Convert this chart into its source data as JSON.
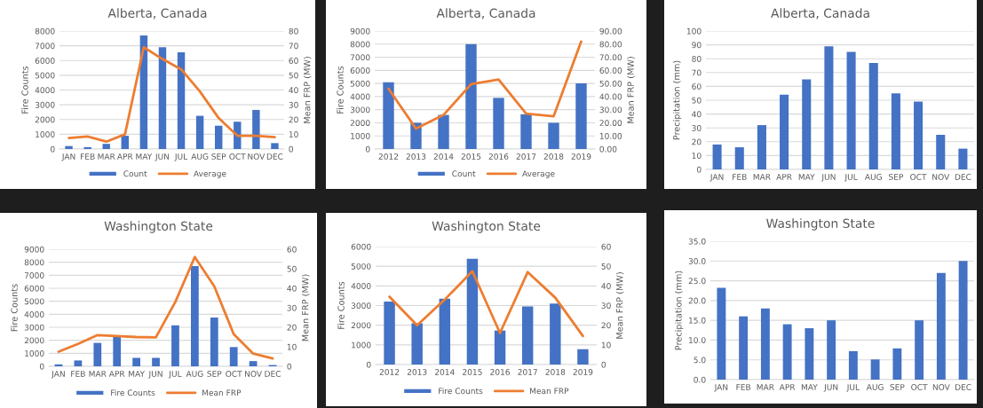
{
  "chart_data": [
    {
      "type": "bar",
      "title": "Alberta, Canada",
      "categories": [
        "JAN",
        "FEB",
        "MAR",
        "APR",
        "MAY",
        "JUN",
        "JUL",
        "AUG",
        "SEP",
        "OCT",
        "NOV",
        "DEC"
      ],
      "ylabel": "Fire Counts",
      "y2label": "Mean FRP (MW)",
      "ylim": [
        0,
        8000
      ],
      "yticks": [
        0,
        1000,
        2000,
        3000,
        4000,
        5000,
        6000,
        7000,
        8000
      ],
      "y2lim": [
        0,
        80
      ],
      "y2ticks": [
        0,
        10,
        20,
        30,
        40,
        50,
        60,
        70,
        80
      ],
      "grid": "y",
      "legend": "bottom",
      "series": [
        {
          "name": "Count",
          "color": "#4472c4",
          "values": [
            200,
            130,
            350,
            900,
            7700,
            6900,
            6550,
            2250,
            1580,
            1850,
            2650,
            400
          ]
        },
        {
          "name": "Average",
          "type": "line",
          "axis": "y2",
          "color": "#ed7d31",
          "values": [
            7.5,
            8.5,
            5,
            10,
            69,
            61,
            54,
            39,
            21,
            9,
            9,
            8
          ]
        }
      ]
    },
    {
      "type": "bar",
      "title": "Alberta, Canada",
      "categories": [
        "2012",
        "2013",
        "2014",
        "2015",
        "2016",
        "2017",
        "2018",
        "2019"
      ],
      "ylabel": "Fire Counts",
      "y2label": "Mean FRP (MW)",
      "ylim": [
        0,
        9000
      ],
      "yticks": [
        0,
        1000,
        2000,
        3000,
        4000,
        5000,
        6000,
        7000,
        8000,
        9000
      ],
      "y2lim": [
        0,
        90
      ],
      "y2ticks": [
        {
          "value": 0,
          "label": "0.00"
        },
        {
          "value": 10,
          "label": "10.00"
        },
        {
          "value": 20,
          "label": "20.00"
        },
        {
          "value": 30,
          "label": "30.00"
        },
        {
          "value": 40,
          "label": "40.00"
        },
        {
          "value": 50,
          "label": "50.00"
        },
        {
          "value": 60,
          "label": "60.00"
        },
        {
          "value": 70,
          "label": "70.00"
        },
        {
          "value": 80,
          "label": "80.00"
        },
        {
          "value": 90,
          "label": "90.00"
        }
      ],
      "grid": "y",
      "legend": "bottom",
      "series": [
        {
          "name": "Count",
          "color": "#4472c4",
          "values": [
            5100,
            2000,
            2600,
            8000,
            3900,
            2650,
            2000,
            5000
          ]
        },
        {
          "name": "Average",
          "type": "line",
          "axis": "y2",
          "color": "#ed7d31",
          "values": [
            46,
            15.5,
            26,
            49.5,
            53,
            27,
            25,
            82
          ]
        }
      ]
    },
    {
      "type": "bar",
      "title": "Alberta, Canada",
      "categories": [
        "JAN",
        "FEB",
        "MAR",
        "APR",
        "MAY",
        "JUN",
        "JUL",
        "AUG",
        "SEP",
        "OCT",
        "NOV",
        "DEC"
      ],
      "ylabel": "Precipitation (mm)",
      "ylim": [
        0,
        100
      ],
      "yticks": [
        0,
        10,
        20,
        30,
        40,
        50,
        60,
        70,
        80,
        90,
        100
      ],
      "grid": "y",
      "color": "#4472c4",
      "values": [
        18,
        16,
        32,
        54,
        65,
        89,
        85,
        77,
        55,
        49,
        25,
        15
      ]
    },
    {
      "type": "bar",
      "title": "Washington State",
      "categories": [
        "JAN",
        "FEB",
        "MAR",
        "APR",
        "MAY",
        "JUN",
        "JUL",
        "AUG",
        "SEP",
        "OCT",
        "NOV",
        "DEC"
      ],
      "ylabel": "Fire Counts",
      "y2label": "Mean FRP (MW)",
      "ylim": [
        0,
        9000
      ],
      "yticks": [
        0,
        1000,
        2000,
        3000,
        4000,
        5000,
        6000,
        7000,
        8000,
        9000
      ],
      "y2lim": [
        0,
        60
      ],
      "y2ticks": [
        0,
        10,
        20,
        30,
        40,
        50,
        60
      ],
      "grid": "y",
      "legend": "bottom",
      "series": [
        {
          "name": "Fire Counts",
          "color": "#4472c4",
          "values": [
            150,
            450,
            1800,
            2250,
            650,
            650,
            3150,
            7700,
            3750,
            1480,
            400,
            100
          ]
        },
        {
          "name": "Mean FRP",
          "type": "line",
          "axis": "y2",
          "color": "#ed7d31",
          "values": [
            7.5,
            11.5,
            16,
            15.5,
            15,
            14.8,
            33,
            56,
            41,
            16.5,
            6.5,
            4
          ]
        }
      ]
    },
    {
      "type": "bar",
      "title": "Washington State",
      "categories": [
        "2012",
        "2013",
        "2014",
        "2015",
        "2016",
        "2017",
        "2018",
        "2019"
      ],
      "ylabel": "Fire Counts",
      "y2label": "Mean FRP (MW)",
      "ylim": [
        0,
        6000
      ],
      "yticks": [
        0,
        1000,
        2000,
        3000,
        4000,
        5000,
        6000
      ],
      "y2lim": [
        0,
        60
      ],
      "y2ticks": [
        0,
        10,
        20,
        30,
        40,
        50,
        60
      ],
      "grid": "y",
      "legend": "bottom",
      "series": [
        {
          "name": "Fire Counts",
          "color": "#4472c4",
          "values": [
            3200,
            2100,
            3350,
            5380,
            1730,
            2950,
            3100,
            780
          ]
        },
        {
          "name": "Mean FRP",
          "type": "line",
          "axis": "y2",
          "color": "#ed7d31",
          "values": [
            34.5,
            20,
            33,
            47.5,
            16,
            47,
            34,
            14.5
          ]
        }
      ]
    },
    {
      "type": "bar",
      "title": "Washington State",
      "categories": [
        "JAN",
        "FEB",
        "MAR",
        "APR",
        "MAY",
        "JUN",
        "JUL",
        "AUG",
        "SEP",
        "OCT",
        "NOV",
        "DEC"
      ],
      "ylabel": "Precipitation (mm)",
      "ylim": [
        0,
        35
      ],
      "yticks": [
        {
          "value": 0,
          "label": "0.0"
        },
        {
          "value": 5,
          "label": "5.0"
        },
        {
          "value": 10,
          "label": "10.0"
        },
        {
          "value": 15,
          "label": "15.0"
        },
        {
          "value": 20,
          "label": "20.0"
        },
        {
          "value": 25,
          "label": "25.0"
        },
        {
          "value": 30,
          "label": "30.0"
        },
        {
          "value": 35,
          "label": "35.0"
        }
      ],
      "grid": "y",
      "color": "#4472c4",
      "values": [
        23.2,
        16,
        18,
        14,
        13,
        15,
        7.2,
        5.1,
        7.9,
        15,
        27,
        30
      ]
    }
  ]
}
